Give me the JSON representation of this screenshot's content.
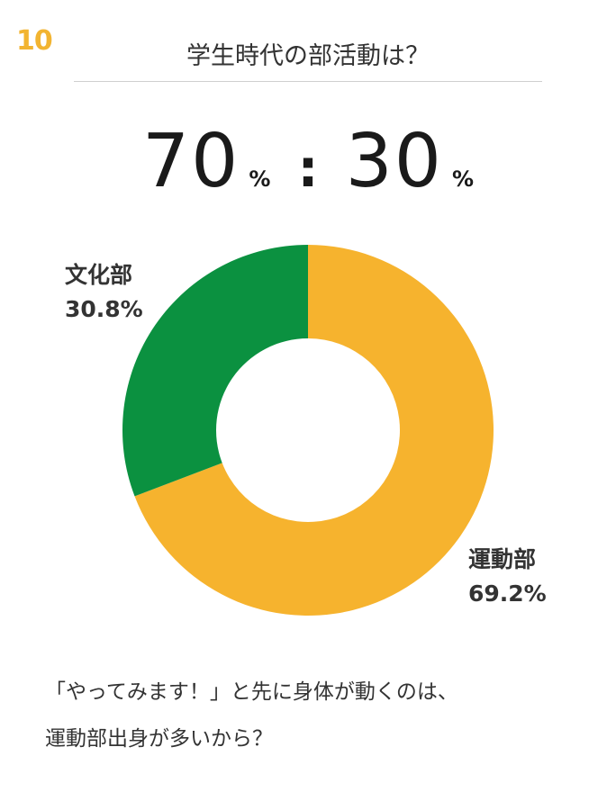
{
  "header": {
    "number": "10",
    "title": "学生時代の部活動は？"
  },
  "ratio": {
    "left_value": "70",
    "left_unit": "%",
    "separator": ":",
    "right_value": "30",
    "right_unit": "%"
  },
  "chart_data": {
    "type": "pie",
    "donut": true,
    "slices": [
      {
        "label": "運動部",
        "value": 69.2,
        "value_label": "69.2%",
        "color": "#f6b32e"
      },
      {
        "label": "文化部",
        "value": 30.8,
        "value_label": "30.8%",
        "color": "#0b9140"
      }
    ],
    "start_angle": "top, clockwise"
  },
  "caption": {
    "line1": "「やってみます！」と先に身体が動くのは、",
    "line2": "運動部出身が多いから？"
  }
}
